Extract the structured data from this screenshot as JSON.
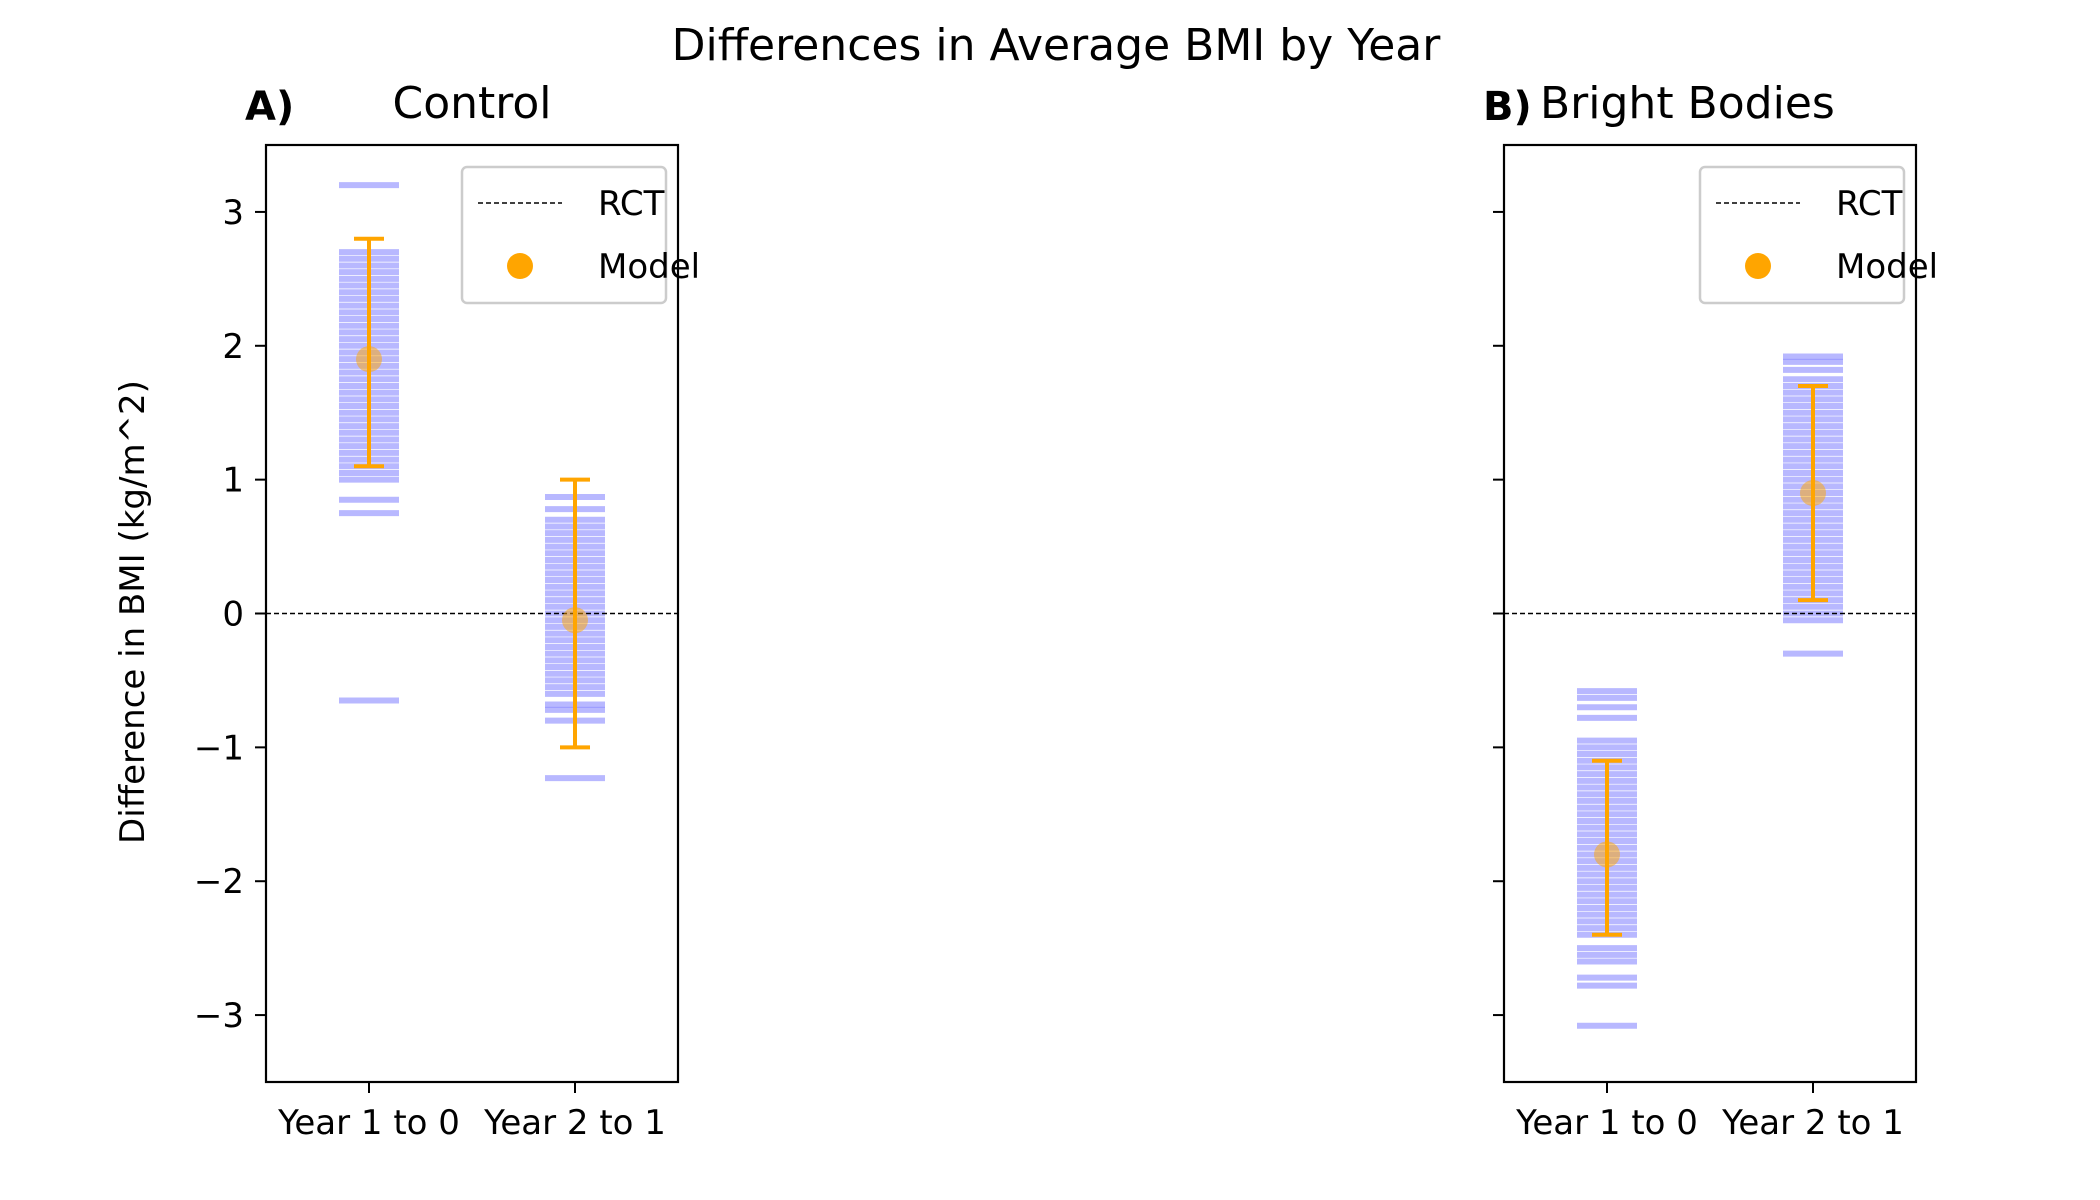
{
  "figure": {
    "title": "Differences in Average BMI by Year",
    "ylabel": "Difference in BMI (kg/m^2)"
  },
  "colors": {
    "samples": "#0000ff",
    "model": "#ffa500",
    "rct_line": "#000000"
  },
  "chart_data": [
    {
      "type": "scatter",
      "panel_letter": "A)",
      "title": "Control",
      "categories": [
        "Year 1 to 0",
        "Year 2 to 1"
      ],
      "ylim": [
        -3.5,
        3.5
      ],
      "yticks": [
        -3,
        -2,
        -1,
        0,
        1,
        2,
        3
      ],
      "ytick_labels": [
        "−3",
        "−2",
        "−1",
        "0",
        "1",
        "2",
        "3"
      ],
      "grid": false,
      "legend": {
        "position": "top-right",
        "entries": [
          "RCT",
          "Model"
        ]
      },
      "rct_reference": 0,
      "model": [
        {
          "category": "Year 1 to 0",
          "value": 1.9,
          "lower": 1.1,
          "upper": 2.8
        },
        {
          "category": "Year 2 to 1",
          "value": -0.05,
          "lower": -1.0,
          "upper": 1.0
        }
      ],
      "samples": [
        [
          3.2,
          2.7,
          2.65,
          2.6,
          2.55,
          2.5,
          2.45,
          2.4,
          2.35,
          2.3,
          2.25,
          2.2,
          2.15,
          2.1,
          2.05,
          2.0,
          1.95,
          1.9,
          1.85,
          1.8,
          1.75,
          1.7,
          1.65,
          1.6,
          1.55,
          1.5,
          1.45,
          1.4,
          1.35,
          1.3,
          1.25,
          1.2,
          1.15,
          1.1,
          1.05,
          1.0,
          0.85,
          0.75,
          -0.65
        ],
        [
          0.87,
          0.78,
          0.7,
          0.65,
          0.6,
          0.55,
          0.5,
          0.45,
          0.4,
          0.35,
          0.3,
          0.25,
          0.2,
          0.15,
          0.1,
          0.05,
          0.0,
          -0.05,
          -0.1,
          -0.15,
          -0.2,
          -0.25,
          -0.3,
          -0.35,
          -0.4,
          -0.45,
          -0.5,
          -0.55,
          -0.6,
          -0.68,
          -0.72,
          -0.8,
          -1.23
        ]
      ]
    },
    {
      "type": "scatter",
      "panel_letter": "B)",
      "title": "Bright Bodies",
      "categories": [
        "Year 1 to 0",
        "Year 2 to 1"
      ],
      "ylim": [
        -3.5,
        3.5
      ],
      "yticks": [
        -3,
        -2,
        -1,
        0,
        1,
        2,
        3
      ],
      "ytick_labels": [
        "",
        "",
        "",
        "",
        "",
        "",
        ""
      ],
      "grid": false,
      "legend": {
        "position": "top-right",
        "entries": [
          "RCT",
          "Model"
        ]
      },
      "rct_reference": 0,
      "model": [
        {
          "category": "Year 1 to 0",
          "value": -1.8,
          "lower": -2.4,
          "upper": -1.1
        },
        {
          "category": "Year 2 to 1",
          "value": 0.9,
          "lower": 0.1,
          "upper": 1.7
        }
      ],
      "samples": [
        [
          -0.58,
          -0.63,
          -0.7,
          -0.78,
          -0.95,
          -1.0,
          -1.05,
          -1.1,
          -1.15,
          -1.2,
          -1.25,
          -1.3,
          -1.35,
          -1.4,
          -1.45,
          -1.5,
          -1.55,
          -1.6,
          -1.65,
          -1.7,
          -1.75,
          -1.8,
          -1.85,
          -1.9,
          -1.95,
          -2.0,
          -2.05,
          -2.1,
          -2.15,
          -2.2,
          -2.25,
          -2.3,
          -2.35,
          -2.4,
          -2.5,
          -2.55,
          -2.6,
          -2.72,
          -2.78,
          -3.08
        ],
        [
          1.92,
          1.88,
          1.82,
          1.75,
          1.7,
          1.65,
          1.6,
          1.55,
          1.5,
          1.45,
          1.4,
          1.35,
          1.3,
          1.25,
          1.2,
          1.15,
          1.1,
          1.05,
          1.0,
          0.95,
          0.9,
          0.85,
          0.8,
          0.75,
          0.7,
          0.65,
          0.6,
          0.55,
          0.5,
          0.45,
          0.4,
          0.35,
          0.3,
          0.25,
          0.2,
          0.15,
          0.1,
          0.05,
          0.0,
          -0.05,
          -0.3
        ]
      ]
    }
  ]
}
